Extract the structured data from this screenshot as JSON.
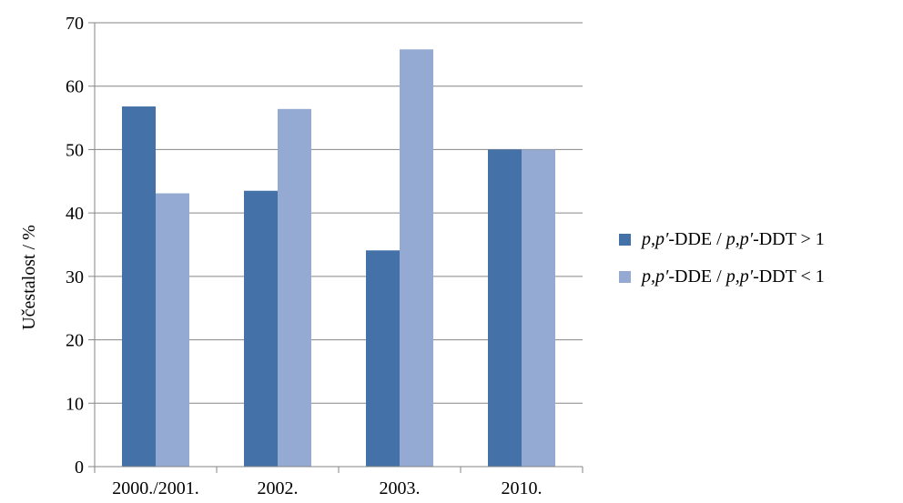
{
  "chart_data": {
    "type": "bar",
    "title": "",
    "xlabel": "",
    "ylabel": "Učestalost / %",
    "ylim": [
      0,
      70
    ],
    "yticks": [
      0,
      10,
      20,
      30,
      40,
      50,
      60,
      70
    ],
    "grid": true,
    "legend_position": "right",
    "categories": [
      "2000./2001.",
      "2002.",
      "2003.",
      "2010."
    ],
    "series": [
      {
        "name": "p,p′-DDE / p,p′-DDT > 1",
        "color": "#4472a8",
        "values": [
          56.8,
          43.5,
          34.1,
          50.0
        ]
      },
      {
        "name": "p,p′-DDE / p,p′-DDT < 1",
        "color": "#94aad3",
        "values": [
          43.1,
          56.4,
          65.8,
          50.0
        ]
      }
    ]
  }
}
